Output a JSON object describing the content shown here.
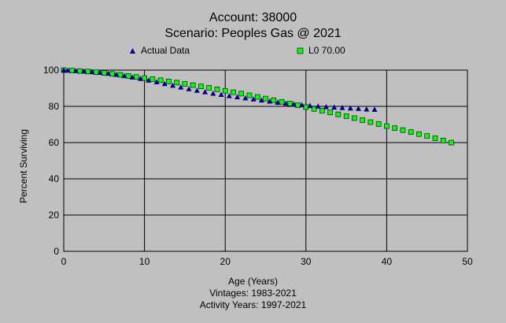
{
  "chart_data": {
    "type": "scatter",
    "title": "Account: 38000",
    "subtitle": "Scenario: Peoples Gas @ 2021",
    "xlabel": "Age (Years)",
    "ylabel": "Percent Surviving",
    "notes": [
      "Vintages: 1983-2021",
      "Activity Years: 1997-2021"
    ],
    "xlim": [
      0,
      50
    ],
    "ylim": [
      0,
      100
    ],
    "xticks": [
      "0",
      "10",
      "20",
      "30",
      "40",
      "50"
    ],
    "yticks": [
      "0",
      "20",
      "40",
      "60",
      "80",
      "100"
    ],
    "grid": true,
    "legend_position": "top",
    "series": [
      {
        "name": "Actual Data",
        "marker": "triangle",
        "color": "#00008b",
        "x": [
          0,
          0.5,
          1.5,
          2.5,
          3.5,
          4.5,
          5.5,
          6.5,
          7.5,
          8.5,
          9.5,
          10.5,
          11.5,
          12.5,
          13.5,
          14.5,
          15.5,
          16.5,
          17.5,
          18.5,
          19.5,
          20.5,
          21.5,
          22.5,
          23.5,
          24.5,
          25.5,
          26.5,
          27.5,
          28.5,
          29.5,
          30.5,
          31.5,
          32.5,
          33.5,
          34.5,
          35.5,
          36.5,
          37.5,
          38.5
        ],
        "y": [
          100,
          99.9,
          99.7,
          99.4,
          99.1,
          98.7,
          98.2,
          97.6,
          96.9,
          96.1,
          95.3,
          94.4,
          93.5,
          92.5,
          91.6,
          90.6,
          89.7,
          88.8,
          88.0,
          87.2,
          86.5,
          85.8,
          85.2,
          84.6,
          84.0,
          83.4,
          82.8,
          82.2,
          81.7,
          81.2,
          80.8,
          80.4,
          80.1,
          79.8,
          79.5,
          79.3,
          79.0,
          78.8,
          78.5,
          78.3
        ]
      },
      {
        "name": "L0 70.00",
        "marker": "square",
        "color": "#00ff00",
        "x": [
          0,
          1,
          2,
          3,
          4,
          5,
          6,
          7,
          8,
          9,
          10,
          11,
          12,
          13,
          14,
          15,
          16,
          17,
          18,
          19,
          20,
          21,
          22,
          23,
          24,
          25,
          26,
          27,
          28,
          29,
          30,
          31,
          32,
          33,
          34,
          35,
          36,
          37,
          38,
          39,
          40,
          41,
          42,
          43,
          44,
          45,
          46,
          47,
          48
        ],
        "y": [
          100,
          99.8,
          99.5,
          99.2,
          98.8,
          98.4,
          97.9,
          97.4,
          96.8,
          96.2,
          95.6,
          95.0,
          94.4,
          93.8,
          93.1,
          92.4,
          91.7,
          91.0,
          90.2,
          89.4,
          88.6,
          87.8,
          87.0,
          86.1,
          85.2,
          84.3,
          83.4,
          82.5,
          81.6,
          80.6,
          79.6,
          78.6,
          77.6,
          76.6,
          75.6,
          74.6,
          73.5,
          72.4,
          71.3,
          70.2,
          69.1,
          68.0,
          66.9,
          65.8,
          64.7,
          63.6,
          62.4,
          61.2,
          60.0
        ]
      }
    ]
  }
}
